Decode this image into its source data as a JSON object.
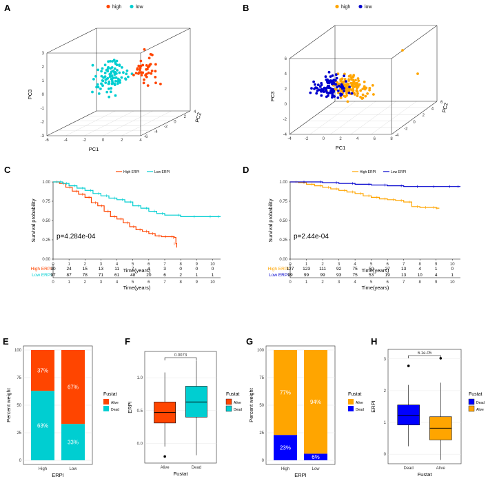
{
  "panel_labels": [
    "A",
    "B",
    "C",
    "D",
    "E",
    "F",
    "G",
    "H"
  ],
  "colors": {
    "high_A": "#ff4500",
    "low_A": "#00ced1",
    "high_B": "#ffa500",
    "low_B": "#0000cd",
    "alive_E": "#ff4500",
    "dead_E": "#00ced1",
    "alive_G": "#ffa500",
    "dead_G": "#0000ff"
  },
  "chart_data": [
    {
      "panel": "A",
      "type": "scatter",
      "title": "",
      "legend": [
        "high",
        "low"
      ],
      "xlabel": "PC1",
      "ylabel": "PC3",
      "zlabel": "PC2",
      "x_ticks": [
        "-6",
        "-4",
        "-2",
        "0",
        "2",
        "4"
      ],
      "y_ticks": [
        "-3",
        "-2",
        "-1",
        "0",
        "1",
        "2",
        "3"
      ],
      "z_ticks": [
        "-6",
        "-4",
        "-2",
        "0",
        "2",
        "4"
      ],
      "series": [
        {
          "name": "high",
          "n": 40
        },
        {
          "name": "low",
          "n": 95
        }
      ]
    },
    {
      "panel": "B",
      "type": "scatter",
      "title": "",
      "legend": [
        "high",
        "low"
      ],
      "xlabel": "PC1",
      "ylabel": "PC3",
      "zlabel": "PC2",
      "x_ticks": [
        "-4",
        "-2",
        "0",
        "2",
        "4",
        "6",
        "8"
      ],
      "y_ticks": [
        "-4",
        "-2",
        "0",
        "2",
        "4",
        "6"
      ],
      "z_ticks": [
        "-4",
        "-2",
        "0",
        "2",
        "4",
        "6"
      ],
      "series": [
        {
          "name": "high",
          "n": 125
        },
        {
          "name": "low",
          "n": 100
        }
      ]
    },
    {
      "panel": "C",
      "type": "line",
      "legend": [
        "High ERPI",
        "Low ERPI"
      ],
      "xlabel": "Time(years)",
      "ylabel": "Survival probability",
      "x_ticks": [
        "0",
        "1",
        "2",
        "3",
        "4",
        "5",
        "6",
        "7",
        "8",
        "9",
        "10"
      ],
      "y_ticks": [
        "0.00",
        "0.25",
        "0.50",
        "0.75",
        "1.00"
      ],
      "pvalue": "p=4.284e-04",
      "series": [
        {
          "name": "High ERPI",
          "x": [
            0,
            0.4,
            0.8,
            1.2,
            1.6,
            2.0,
            2.4,
            2.8,
            3.2,
            3.6,
            4.0,
            4.4,
            4.8,
            5.2,
            5.6,
            6.0,
            6.4,
            6.8,
            7.2,
            7.6,
            7.7,
            7.75
          ],
          "y": [
            1.0,
            0.98,
            0.93,
            0.88,
            0.84,
            0.8,
            0.73,
            0.69,
            0.62,
            0.55,
            0.52,
            0.47,
            0.42,
            0.38,
            0.36,
            0.33,
            0.3,
            0.29,
            0.29,
            0.28,
            0.2,
            0.15
          ]
        },
        {
          "name": "Low ERPI",
          "x": [
            0,
            0.6,
            1.0,
            1.5,
            2.0,
            2.5,
            3.0,
            3.5,
            4.0,
            4.5,
            5.0,
            5.5,
            6.0,
            6.5,
            7.0,
            8.0,
            9.0,
            10.0,
            10.5
          ],
          "y": [
            1.0,
            0.98,
            0.95,
            0.92,
            0.89,
            0.85,
            0.82,
            0.79,
            0.77,
            0.74,
            0.69,
            0.66,
            0.62,
            0.59,
            0.57,
            0.55,
            0.55,
            0.55,
            0.55
          ]
        }
      ],
      "risk_table": {
        "x_ticks": [
          "0",
          "1",
          "2",
          "3",
          "4",
          "5",
          "6",
          "7",
          "8",
          "9",
          "10"
        ],
        "xlabel": "Time(years)",
        "rows": [
          {
            "label": "High ERPI",
            "values": [
              "30",
              "24",
              "15",
              "13",
              "11",
              "7",
              "4",
              "3",
              "0",
              "0",
              "0"
            ]
          },
          {
            "label": "Low ERPI",
            "values": [
              "97",
              "87",
              "78",
              "71",
              "61",
              "48",
              "20",
              "6",
              "2",
              "1",
              "1"
            ]
          }
        ]
      }
    },
    {
      "panel": "D",
      "type": "line",
      "legend": [
        "High ERPI",
        "Low ERPI"
      ],
      "xlabel": "Time(years)",
      "ylabel": "Survival probability",
      "x_ticks": [
        "0",
        "1",
        "2",
        "3",
        "4",
        "5",
        "6",
        "7",
        "8",
        "9",
        "10"
      ],
      "y_ticks": [
        "0.00",
        "0.25",
        "0.50",
        "0.75",
        "1.00"
      ],
      "pvalue": "p=2.44e-04",
      "series": [
        {
          "name": "High ERPI",
          "x": [
            0,
            0.5,
            1.0,
            1.5,
            2.0,
            2.5,
            3.0,
            3.5,
            4.0,
            4.5,
            5.0,
            5.5,
            6.0,
            6.5,
            7.0,
            7.5,
            8.0,
            8.5,
            9.0,
            9.2
          ],
          "y": [
            1.0,
            0.99,
            0.97,
            0.95,
            0.93,
            0.91,
            0.89,
            0.87,
            0.85,
            0.82,
            0.8,
            0.78,
            0.77,
            0.76,
            0.74,
            0.68,
            0.67,
            0.67,
            0.66,
            0.66
          ]
        },
        {
          "name": "Low ERPI",
          "x": [
            0,
            1.0,
            2.0,
            3.0,
            4.0,
            5.0,
            6.0,
            7.0,
            8.0,
            9.0,
            10.0,
            10.5
          ],
          "y": [
            1.0,
            1.0,
            0.99,
            0.98,
            0.97,
            0.96,
            0.95,
            0.94,
            0.94,
            0.94,
            0.94,
            0.94
          ]
        }
      ],
      "risk_table": {
        "x_ticks": [
          "0",
          "1",
          "2",
          "3",
          "4",
          "5",
          "6",
          "7",
          "8",
          "9",
          "10"
        ],
        "xlabel": "Time(years)",
        "rows": [
          {
            "label": "High ERPI",
            "values": [
              "127",
              "123",
              "111",
              "92",
              "75",
              "50",
              "27",
              "13",
              "4",
              "1",
              "0"
            ]
          },
          {
            "label": "Low ERPI",
            "values": [
              "99",
              "99",
              "99",
              "93",
              "75",
              "53",
              "19",
              "13",
              "10",
              "4",
              "1"
            ]
          }
        ]
      }
    },
    {
      "panel": "E",
      "type": "bar",
      "stacked": true,
      "categories": [
        "High",
        "Low"
      ],
      "xlabel": "ERPI",
      "ylabel": "Percent weight",
      "y_ticks": [
        "0",
        "25",
        "50",
        "75",
        "100"
      ],
      "legend_title": "Fustat",
      "legend": [
        "Alive",
        "Dead"
      ],
      "series": [
        {
          "name": "Dead",
          "values": [
            63,
            33
          ],
          "labels": [
            "63%",
            "33%"
          ]
        },
        {
          "name": "Alive",
          "values": [
            37,
            67
          ],
          "labels": [
            "37%",
            "67%"
          ]
        }
      ]
    },
    {
      "panel": "F",
      "type": "box",
      "categories": [
        "Alive",
        "Dead"
      ],
      "xlabel": "Fustat",
      "ylabel": "ERPI",
      "y_ticks": [
        "0.0",
        "0.5",
        "1.0"
      ],
      "legend_title": "Fustat",
      "legend": [
        "Alive",
        "Dead"
      ],
      "pvalue": "0.0073",
      "boxes": [
        {
          "name": "Alive",
          "min": -0.05,
          "q1": 0.31,
          "median": 0.47,
          "q3": 0.63,
          "max": 1.08,
          "outliers": [
            -0.2
          ]
        },
        {
          "name": "Dead",
          "min": -0.18,
          "q1": 0.4,
          "median": 0.63,
          "q3": 0.87,
          "max": 1.26,
          "outliers": []
        }
      ]
    },
    {
      "panel": "G",
      "type": "bar",
      "stacked": true,
      "categories": [
        "High",
        "Low"
      ],
      "xlabel": "ERPI",
      "ylabel": "Percent weight",
      "y_ticks": [
        "0",
        "25",
        "50",
        "75",
        "100"
      ],
      "legend_title": "Fustat",
      "legend": [
        "Alive",
        "Dead"
      ],
      "series": [
        {
          "name": "Dead",
          "values": [
            23,
            6
          ],
          "labels": [
            "23%",
            "6%"
          ]
        },
        {
          "name": "Alive",
          "values": [
            77,
            94
          ],
          "labels": [
            "77%",
            "94%"
          ]
        }
      ]
    },
    {
      "panel": "H",
      "type": "box",
      "categories": [
        "Dead",
        "Alive"
      ],
      "xlabel": "Fustat",
      "ylabel": "ERPI",
      "y_ticks": [
        "0",
        "1",
        "2",
        "3"
      ],
      "legend_title": "Fustat",
      "legend": [
        "Dead",
        "Alive"
      ],
      "pvalue": "6.1e-05",
      "boxes": [
        {
          "name": "Dead",
          "min": 0.25,
          "q1": 0.92,
          "median": 1.22,
          "q3": 1.55,
          "max": 2.18,
          "outliers": [
            2.78
          ]
        },
        {
          "name": "Alive",
          "min": -0.18,
          "q1": 0.45,
          "median": 0.82,
          "q3": 1.18,
          "max": 2.25,
          "outliers": [
            3.02
          ]
        }
      ]
    }
  ]
}
